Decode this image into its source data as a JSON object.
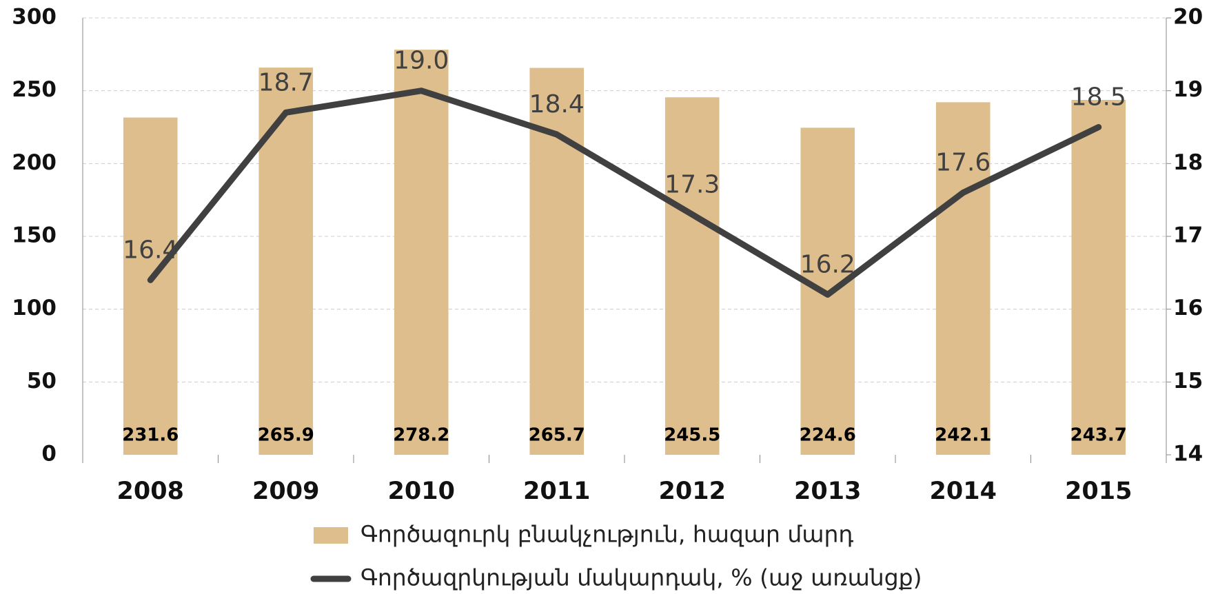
{
  "chart_data": {
    "type": "bar-line",
    "categories": [
      "2008",
      "2009",
      "2010",
      "2011",
      "2012",
      "2013",
      "2014",
      "2015"
    ],
    "series": [
      {
        "name": "Գործազուրկ բնակչություն, հազար մարդ",
        "type": "bar",
        "color": "#dfbe8e",
        "values": [
          231.6,
          265.9,
          278.2,
          265.7,
          245.5,
          224.6,
          242.1,
          243.7
        ]
      },
      {
        "name": "Գործազրկության մակարդակ, % (աջ առանցք)",
        "type": "line",
        "axis": "y2",
        "color": "#404040",
        "values": [
          16.4,
          18.7,
          19.0,
          18.4,
          17.3,
          16.2,
          17.6,
          18.5
        ],
        "value_labels": [
          "16.4",
          "18.7",
          "19.0",
          "18.4",
          "17.3",
          "16.2",
          "17.6",
          "18.5"
        ]
      }
    ],
    "ylim": [
      0,
      300
    ],
    "yticks": [
      0,
      50,
      100,
      150,
      200,
      250,
      300
    ],
    "y2lim": [
      14,
      20
    ],
    "y2ticks": [
      14,
      15,
      16,
      17,
      18,
      19,
      20
    ],
    "grid": true,
    "legend": "bottom"
  }
}
